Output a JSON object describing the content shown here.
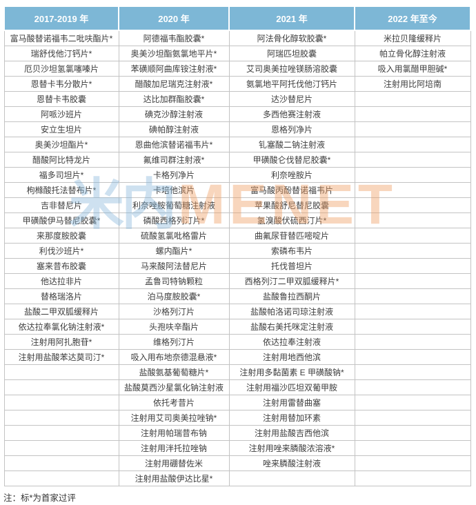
{
  "table": {
    "row_count": 30,
    "columns": [
      {
        "header": "2017-2019 年",
        "items": [
          "富马酸替诺福韦二吡呋酯片*",
          "瑞舒伐他汀钙片*",
          "厄贝沙坦氢氯噻嗪片",
          "恩替卡韦分散片*",
          "恩替卡韦胶囊",
          "阿哌沙班片",
          "安立生坦片",
          "奥美沙坦酯片*",
          "醋酸阿比特龙片",
          "福多司坦片*",
          "枸橼酸托法替布片*",
          "吉非替尼片",
          "甲磺酸伊马替尼胶囊*",
          "来那度胺胶囊",
          "利伐沙班片*",
          "塞来昔布胶囊",
          "他达拉非片",
          "替格瑞洛片",
          "盐酸二甲双胍缓释片",
          "依达拉奉氯化钠注射液*",
          "注射用阿扎胞苷*",
          "注射用盐酸苯达莫司汀*"
        ]
      },
      {
        "header": "2020 年",
        "items": [
          "阿德福韦酯胶囊*",
          "奥美沙坦酯氨氯地平片*",
          "苯磺顺阿曲库铵注射液*",
          "醋酸加尼瑞克注射液*",
          "达比加群酯胶囊*",
          "碘克沙醇注射液",
          "碘帕醇注射液",
          "恩曲他滨替诺福韦片*",
          "氟维司群注射液*",
          "卡格列净片",
          "卡培他滨片",
          "利奈唑胺葡萄糖注射液",
          "磷酸西格列汀片*",
          "硫酸氢氯吡格雷片",
          "螺内酯片*",
          "马来酸阿法替尼片",
          "孟鲁司特钠颗粒",
          "泊马度胺胶囊*",
          "沙格列汀片",
          "头孢呋辛酯片",
          "维格列汀片",
          "吸入用布地奈德混悬液*",
          "盐酸氨基葡萄糖片*",
          "盐酸莫西沙星氯化钠注射液",
          "依托考昔片",
          "注射用艾司奥美拉唑钠*",
          "注射用帕瑞昔布钠",
          "注射用泮托拉唑钠",
          "注射用硼替佐米",
          "注射用盐酸伊达比星*"
        ]
      },
      {
        "header": "2021 年",
        "items": [
          "阿法骨化醇软胶囊*",
          "阿瑞匹坦胶囊",
          "艾司奥美拉唑镁肠溶胶囊",
          "氨氯地平阿托伐他汀钙片",
          "达沙替尼片",
          "多西他赛注射液",
          "恩格列净片",
          "钆塞酸二钠注射液",
          "甲磺酸仑伐替尼胶囊*",
          "利奈唑胺片",
          "富马酸丙酚替诺福韦片",
          "苹果酸舒尼替尼胶囊",
          "氢溴酸伏硫西汀片*",
          "曲氟尿苷替匹嘧啶片",
          "索磷布韦片",
          "托伐普坦片",
          "西格列汀二甲双胍缓释片*",
          "盐酸鲁拉西酮片",
          "盐酸帕洛诺司琼注射液",
          "盐酸右美托咪定注射液",
          "依达拉奉注射液",
          "注射用地西他滨",
          "注射用多黏菌素 E 甲磺酸钠*",
          "注射用福沙匹坦双葡甲胺",
          "注射用雷替曲塞",
          "注射用替加环素",
          "注射用盐酸吉西他滨",
          "注射用唑来膦酸浓溶液*",
          "唑来膦酸注射液"
        ]
      },
      {
        "header": "2022 年至今",
        "items": [
          "米拉贝隆缓释片",
          "帕立骨化醇注射液",
          "吸入用氯醋甲胆碱*",
          "注射用比阿培南"
        ]
      }
    ]
  },
  "watermark": {
    "cn": "米内",
    "en": "MENET"
  },
  "footnote": "注：标*为首家过评",
  "colors": {
    "header_bg": "#7db7d6",
    "header_text": "#ffffff",
    "grid": "#c3c3c3",
    "body_text": "#3d3d3d",
    "watermark_blue": "#7fb3d8",
    "watermark_orange": "#ef9e63"
  }
}
